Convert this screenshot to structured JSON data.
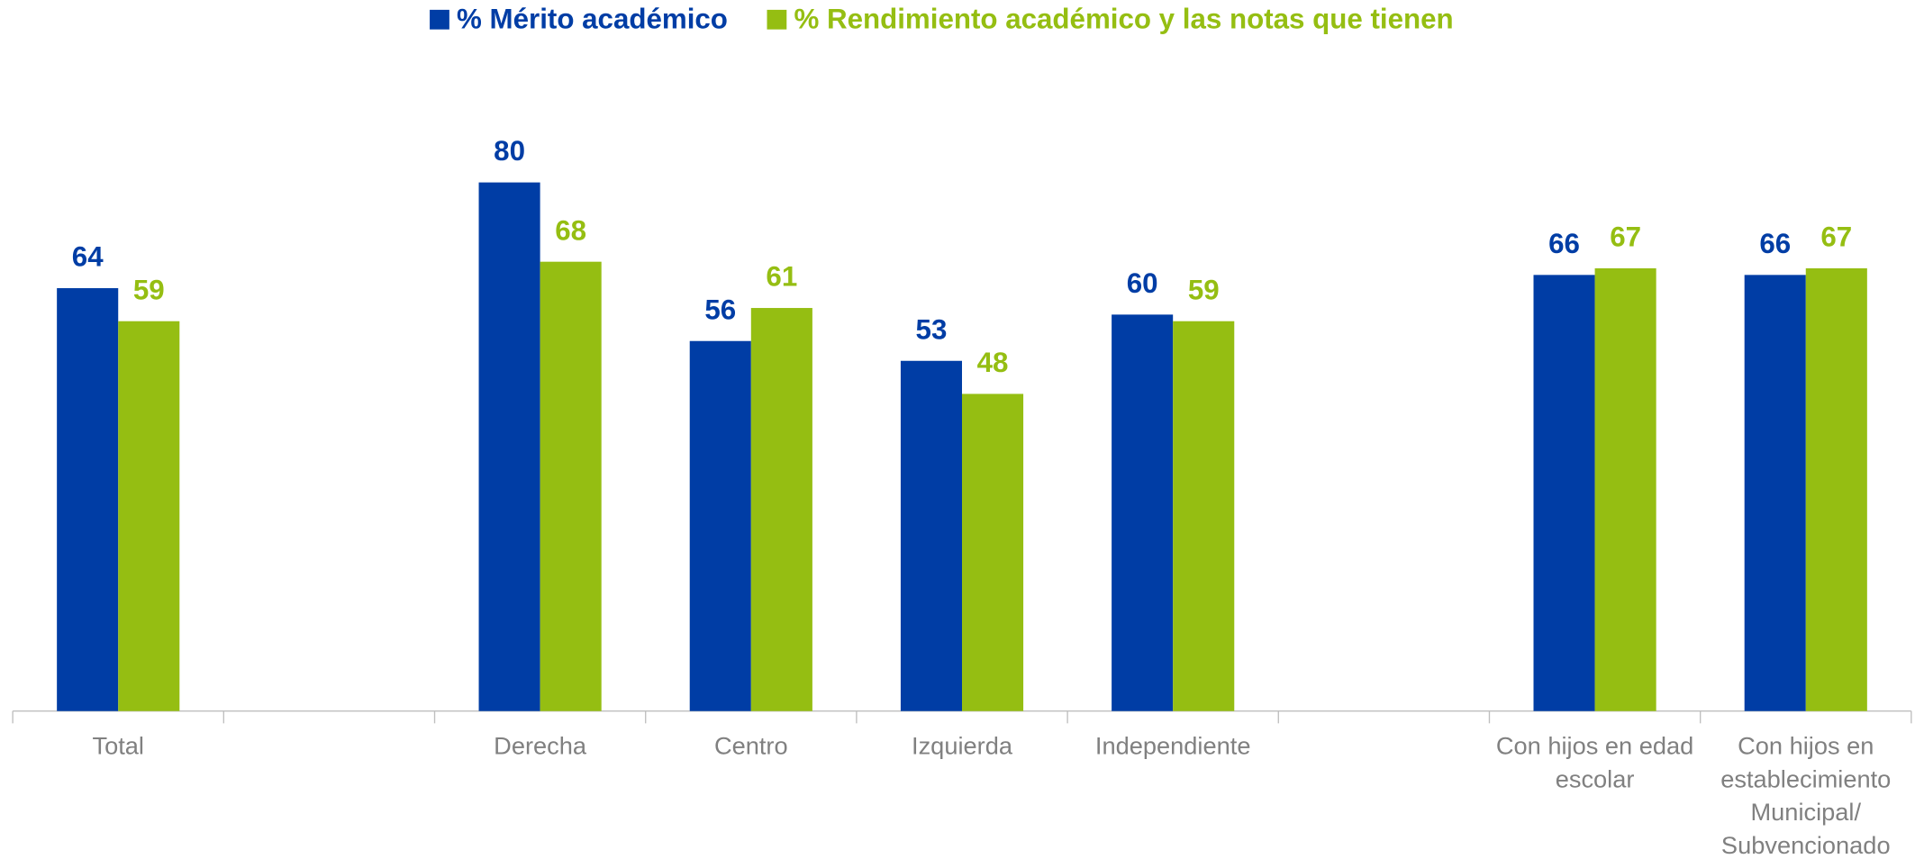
{
  "chart_data": {
    "type": "bar",
    "categories": [
      "Total",
      null,
      "Derecha",
      "Centro",
      "Izquierda",
      "Independiente",
      null,
      "Con hijos en edad escolar",
      "Con hijos en establecimiento Municipal/ Subvencionado"
    ],
    "series": [
      {
        "name": "% Mérito académico",
        "color": "#003DA5",
        "values": [
          64,
          null,
          80,
          56,
          53,
          60,
          null,
          66,
          66
        ]
      },
      {
        "name": "% Rendimiento académico y las notas que tienen",
        "color": "#95BE12",
        "values": [
          59,
          null,
          68,
          61,
          48,
          59,
          null,
          67,
          67
        ]
      }
    ],
    "ylim": [
      0,
      100
    ],
    "legend": "top"
  }
}
